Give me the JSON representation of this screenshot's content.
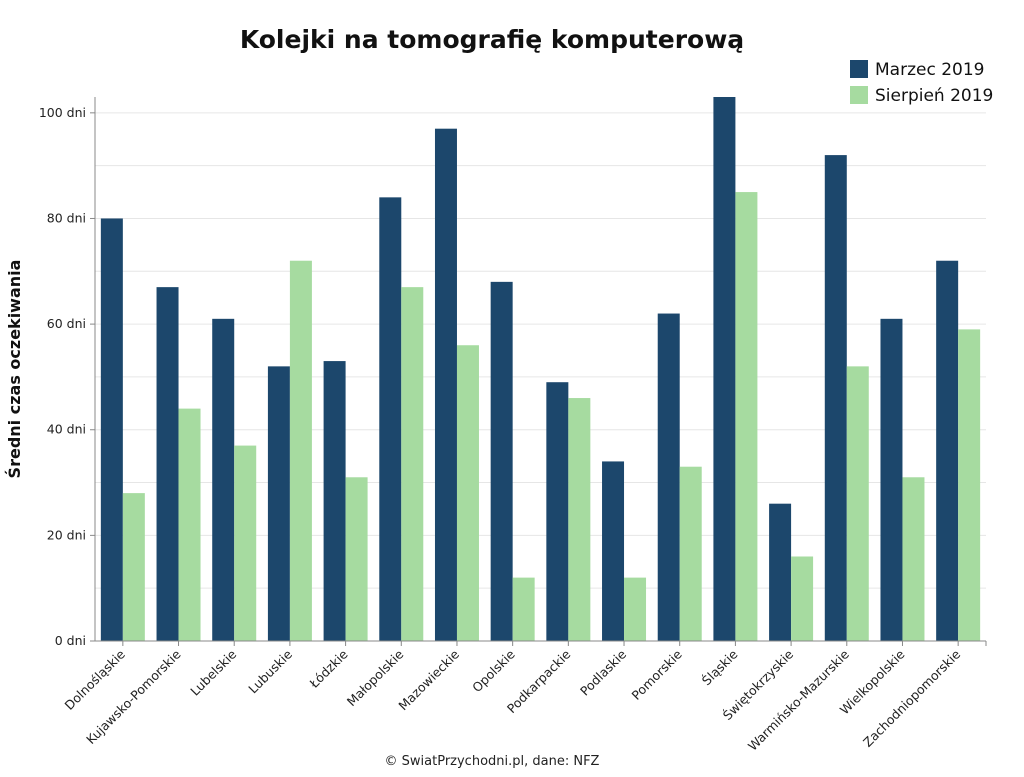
{
  "chart_data": {
    "type": "bar",
    "title": "Kolejki na tomografię komputerową",
    "ylabel": "Średni czas oczekiwania",
    "xlabel": "",
    "ylim": [
      0,
      103
    ],
    "yticks": [
      0,
      20,
      40,
      60,
      80,
      100
    ],
    "ytick_suffix": " dni",
    "grid": true,
    "legend_position": "top-right",
    "categories": [
      "Dolnośląskie",
      "Kujawsko-Pomorskie",
      "Lubelskie",
      "Lubuskie",
      "Łódzkie",
      "Małopolskie",
      "Mazowieckie",
      "Opolskie",
      "Podkarpackie",
      "Podlaskie",
      "Pomorskie",
      "Śląskie",
      "Świętokrzyskie",
      "Warmińsko-Mazurskie",
      "Wielkopolskie",
      "Zachodniopomorskie"
    ],
    "series": [
      {
        "name": "Marzec 2019",
        "color": "#1c476c",
        "values": [
          80,
          67,
          61,
          52,
          53,
          84,
          97,
          68,
          49,
          34,
          62,
          103,
          26,
          92,
          61,
          72
        ]
      },
      {
        "name": "Sierpień 2019",
        "color": "#a6dba0",
        "values": [
          28,
          44,
          37,
          72,
          31,
          67,
          56,
          12,
          46,
          12,
          33,
          85,
          16,
          52,
          31,
          59
        ]
      }
    ],
    "source": "© SwiatPrzychodni.pl, dane: NFZ"
  }
}
